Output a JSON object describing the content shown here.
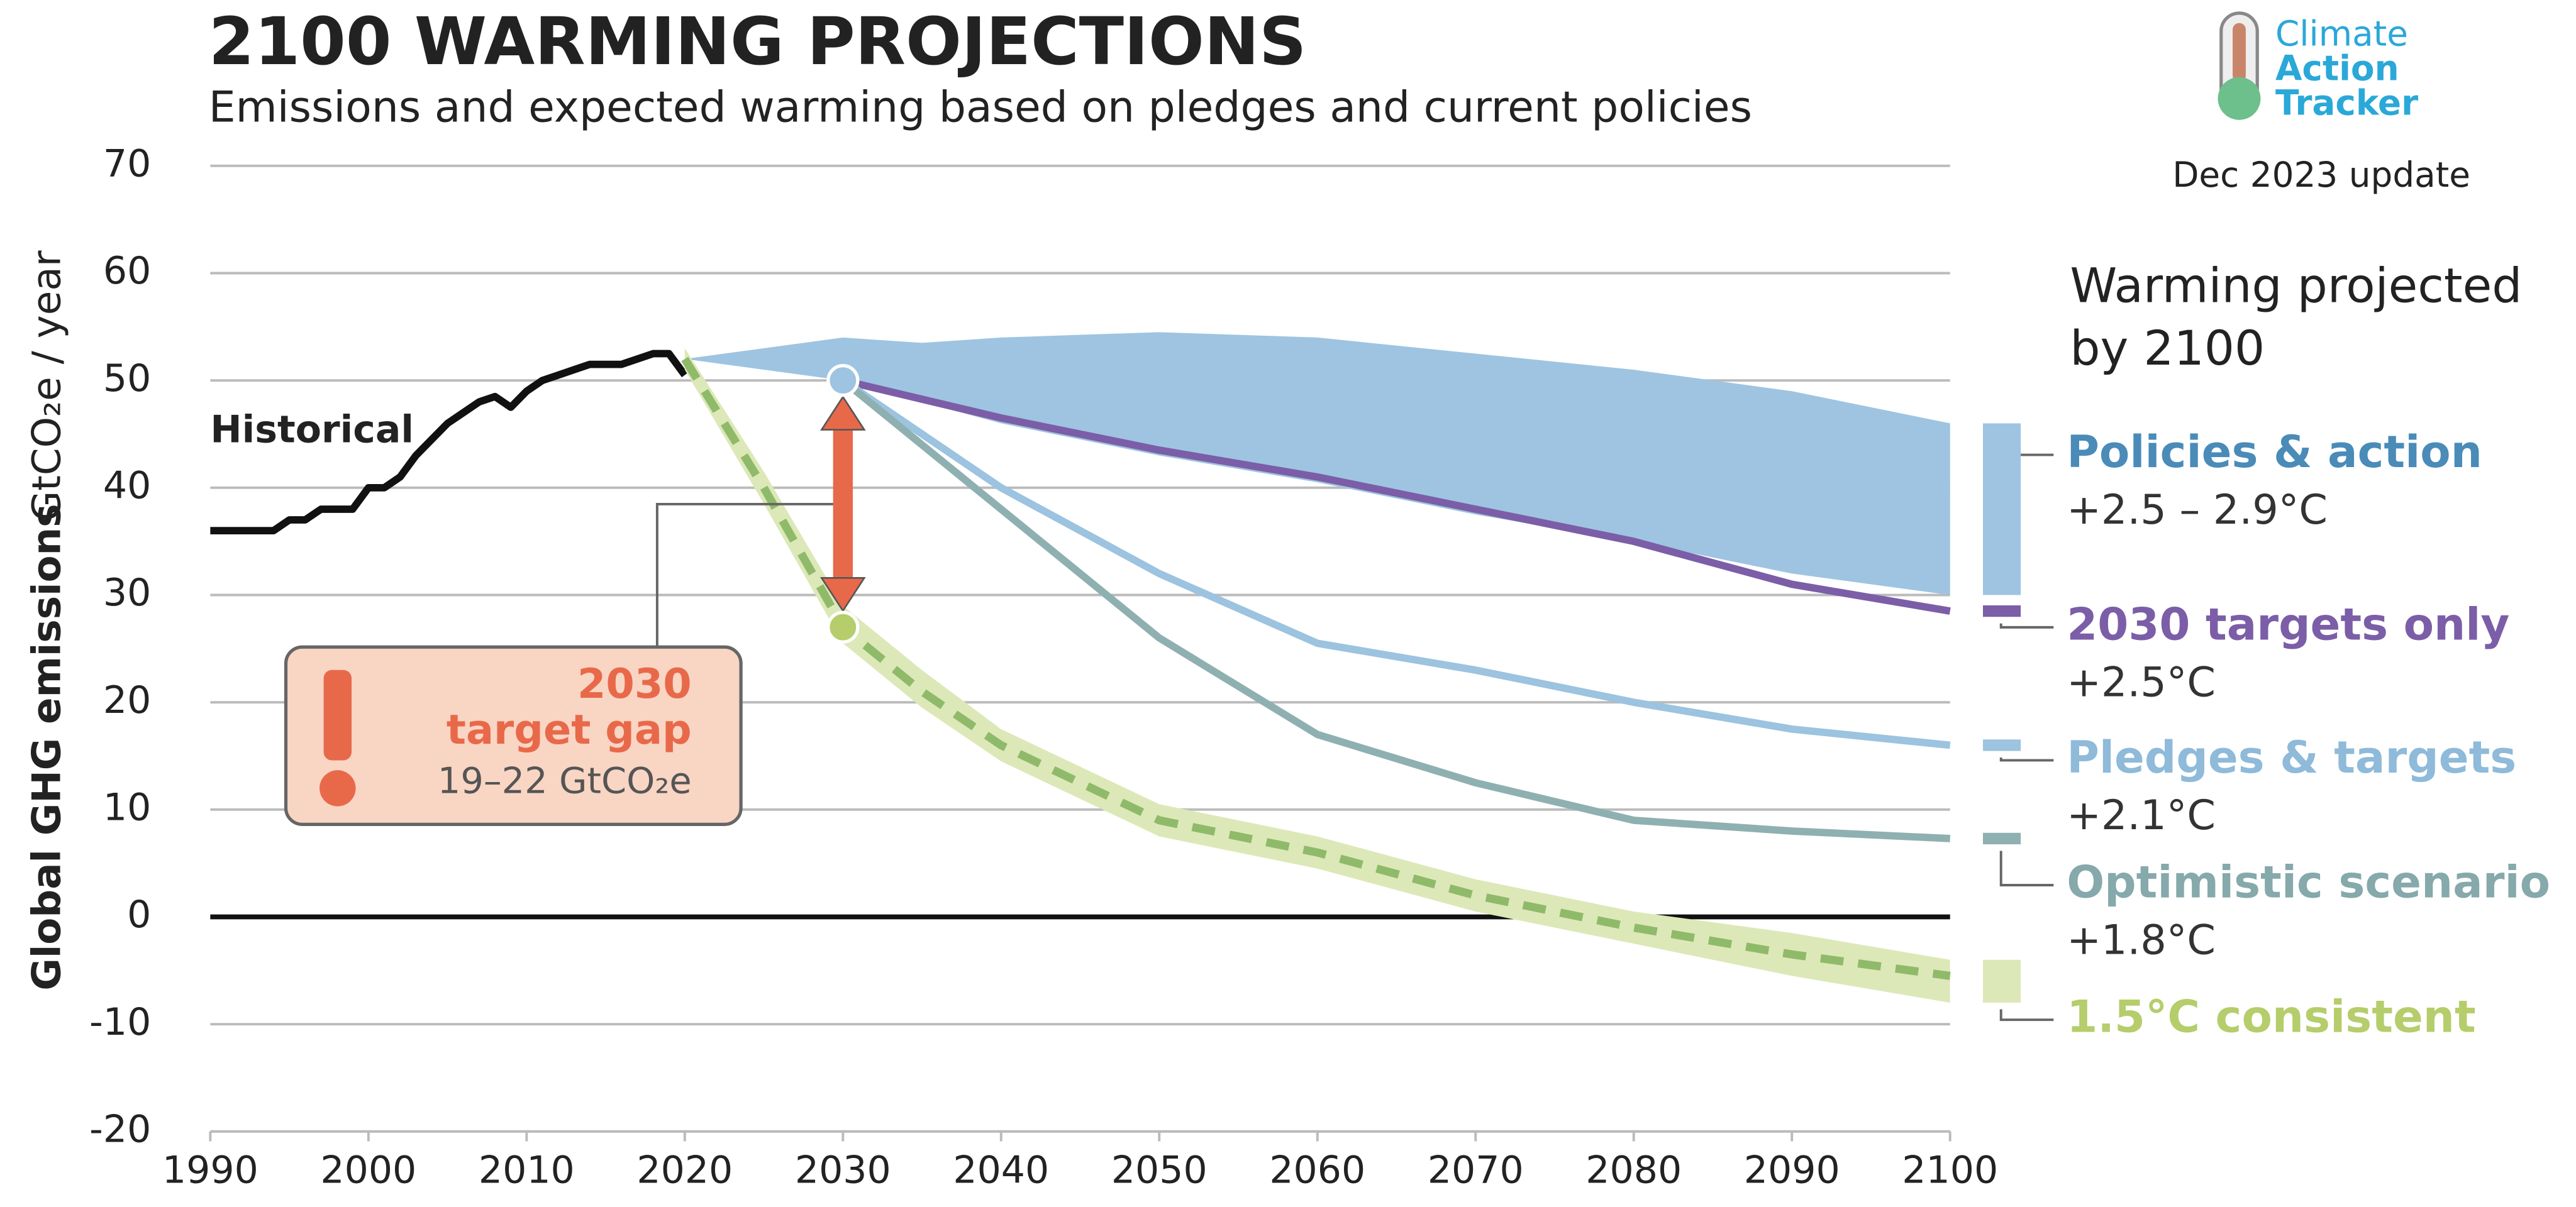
{
  "chart_data": {
    "type": "line",
    "title": "2100 WARMING PROJECTIONS",
    "subtitle": "Emissions and expected warming based on pledges and current policies",
    "y_label": "Global GHG emissions",
    "y_unit": "GtCO₂e / year",
    "xlim": [
      1990,
      2100
    ],
    "xticks": [
      1990,
      2000,
      2010,
      2020,
      2030,
      2040,
      2050,
      2060,
      2070,
      2080,
      2090,
      2100
    ],
    "ylim": [
      -20,
      70
    ],
    "yticks": [
      -20,
      -10,
      0,
      10,
      20,
      30,
      40,
      50,
      60,
      70
    ],
    "grid": true,
    "legend_title": [
      "Warming projected",
      "by 2100"
    ],
    "update": "Dec 2023 update",
    "logo": [
      "Climate",
      "Action",
      "Tracker"
    ],
    "bands": [
      {
        "name": "Policies & action",
        "warming": "+2.5 – 2.9°C",
        "color": "#9ec4e1",
        "label_color": "#4a8bb8",
        "x": [
          2020,
          2025,
          2030,
          2035,
          2040,
          2050,
          2060,
          2070,
          2080,
          2090,
          2100
        ],
        "low": [
          52,
          51,
          50,
          48,
          46,
          43,
          40.5,
          37.5,
          35,
          32,
          30
        ],
        "high": [
          52,
          53,
          54,
          53.5,
          54,
          54.5,
          54,
          52.5,
          51,
          49,
          46
        ]
      }
    ],
    "series": [
      {
        "name": "Historical",
        "color": "#111111",
        "x": [
          1990,
          1991,
          1992,
          1993,
          1994,
          1995,
          1996,
          1997,
          1998,
          1999,
          2000,
          2001,
          2002,
          2003,
          2004,
          2005,
          2006,
          2007,
          2008,
          2009,
          2010,
          2011,
          2012,
          2013,
          2014,
          2015,
          2016,
          2017,
          2018,
          2019,
          2020
        ],
        "values": [
          36,
          36,
          36,
          36,
          36,
          37,
          37,
          38,
          38,
          38,
          40,
          40,
          41,
          43,
          44.5,
          46,
          47,
          48,
          48.5,
          47.5,
          49,
          50,
          50.5,
          51,
          51.5,
          51.5,
          51.5,
          52,
          52.5,
          52.5,
          50.5
        ]
      },
      {
        "name": "2030 targets only",
        "warming": "+2.5°C",
        "color": "#7b5ea7",
        "label_color": "#7b5ea7",
        "x": [
          2030,
          2040,
          2050,
          2060,
          2070,
          2080,
          2090,
          2100
        ],
        "values": [
          50,
          46.5,
          43.5,
          41,
          38,
          35,
          31,
          28.5
        ]
      },
      {
        "name": "Pledges & targets",
        "warming": "+2.1°C",
        "color": "#9cc3df",
        "label_color": "#8fbad9",
        "x": [
          2030,
          2040,
          2050,
          2060,
          2070,
          2080,
          2090,
          2100
        ],
        "values": [
          50,
          40,
          32,
          25.5,
          23,
          20,
          17.5,
          16
        ]
      },
      {
        "name": "Optimistic scenario",
        "warming": "+1.8°C",
        "color": "#8fb0b0",
        "label_color": "#86a9ab",
        "x": [
          2030,
          2040,
          2050,
          2060,
          2070,
          2080,
          2090,
          2100
        ],
        "values": [
          50,
          38,
          26,
          17,
          12.5,
          9,
          8,
          7.3
        ]
      },
      {
        "name": "1.5°C consistent",
        "color": "#8fba6a",
        "label_color": "#b5cd6b",
        "band_color": "#dde8b8",
        "dashed": true,
        "x": [
          2020,
          2025,
          2030,
          2035,
          2040,
          2050,
          2060,
          2070,
          2080,
          2090,
          2100
        ],
        "values": [
          52,
          40,
          27,
          21,
          16,
          9,
          6,
          2,
          -1,
          -3.5,
          -5.5
        ],
        "low": [
          51,
          38.5,
          25.5,
          19.5,
          14.5,
          7.5,
          4.5,
          0.5,
          -2.5,
          -5.5,
          -8
        ],
        "high": [
          53,
          41.5,
          29,
          23,
          17.5,
          10.5,
          7.5,
          3.5,
          0.5,
          -1.5,
          -4
        ]
      }
    ],
    "gap": {
      "year": "2030",
      "label": "target gap",
      "range": "19–22  GtCO₂e",
      "color": "#e8694a"
    }
  }
}
